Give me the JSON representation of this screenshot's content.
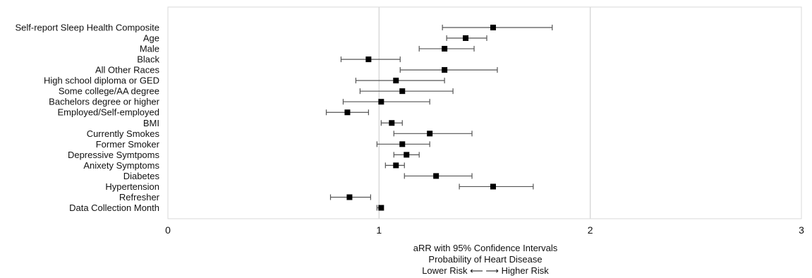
{
  "chart_data": {
    "type": "forest",
    "xlabel_lines": [
      "aRR with 95% Confidence Intervals",
      "Probability of Heart Disease",
      "Lower Risk ⟵ ⟶ Higher Risk"
    ],
    "xlim": [
      0,
      3
    ],
    "xticks": [
      "0",
      "1",
      "2",
      "3"
    ],
    "grid": "vertical",
    "colors": {
      "marker": "#000000",
      "whisker": "#555555",
      "grid": "#d9d9d9",
      "frame": "#d9d9d9"
    },
    "rows": [
      {
        "label": "Self-report Sleep Health Composite",
        "est": 1.54,
        "lo": 1.3,
        "hi": 1.82
      },
      {
        "label": "Age",
        "est": 1.41,
        "lo": 1.32,
        "hi": 1.51
      },
      {
        "label": "Male",
        "est": 1.31,
        "lo": 1.19,
        "hi": 1.45
      },
      {
        "label": "Black",
        "est": 0.95,
        "lo": 0.82,
        "hi": 1.1
      },
      {
        "label": "All Other Races",
        "est": 1.31,
        "lo": 1.1,
        "hi": 1.56
      },
      {
        "label": "High school diploma or GED",
        "est": 1.08,
        "lo": 0.89,
        "hi": 1.31
      },
      {
        "label": "Some college/AA degree",
        "est": 1.11,
        "lo": 0.91,
        "hi": 1.35
      },
      {
        "label": "Bachelors degree or higher",
        "est": 1.01,
        "lo": 0.83,
        "hi": 1.24
      },
      {
        "label": "Employed/Self-employed",
        "est": 0.85,
        "lo": 0.75,
        "hi": 0.95
      },
      {
        "label": "BMI",
        "est": 1.06,
        "lo": 1.01,
        "hi": 1.11
      },
      {
        "label": "Currently Smokes",
        "est": 1.24,
        "lo": 1.07,
        "hi": 1.44
      },
      {
        "label": "Former Smoker",
        "est": 1.11,
        "lo": 0.99,
        "hi": 1.24
      },
      {
        "label": "Depressive Symtpoms",
        "est": 1.13,
        "lo": 1.07,
        "hi": 1.19
      },
      {
        "label": "Anixety Symptoms",
        "est": 1.08,
        "lo": 1.03,
        "hi": 1.12
      },
      {
        "label": "Diabetes",
        "est": 1.27,
        "lo": 1.12,
        "hi": 1.44
      },
      {
        "label": "Hypertension",
        "est": 1.54,
        "lo": 1.38,
        "hi": 1.73
      },
      {
        "label": "Refresher",
        "est": 0.86,
        "lo": 0.77,
        "hi": 0.96
      },
      {
        "label": "Data Collection Month",
        "est": 1.01,
        "lo": 0.99,
        "hi": 1.02
      }
    ]
  }
}
